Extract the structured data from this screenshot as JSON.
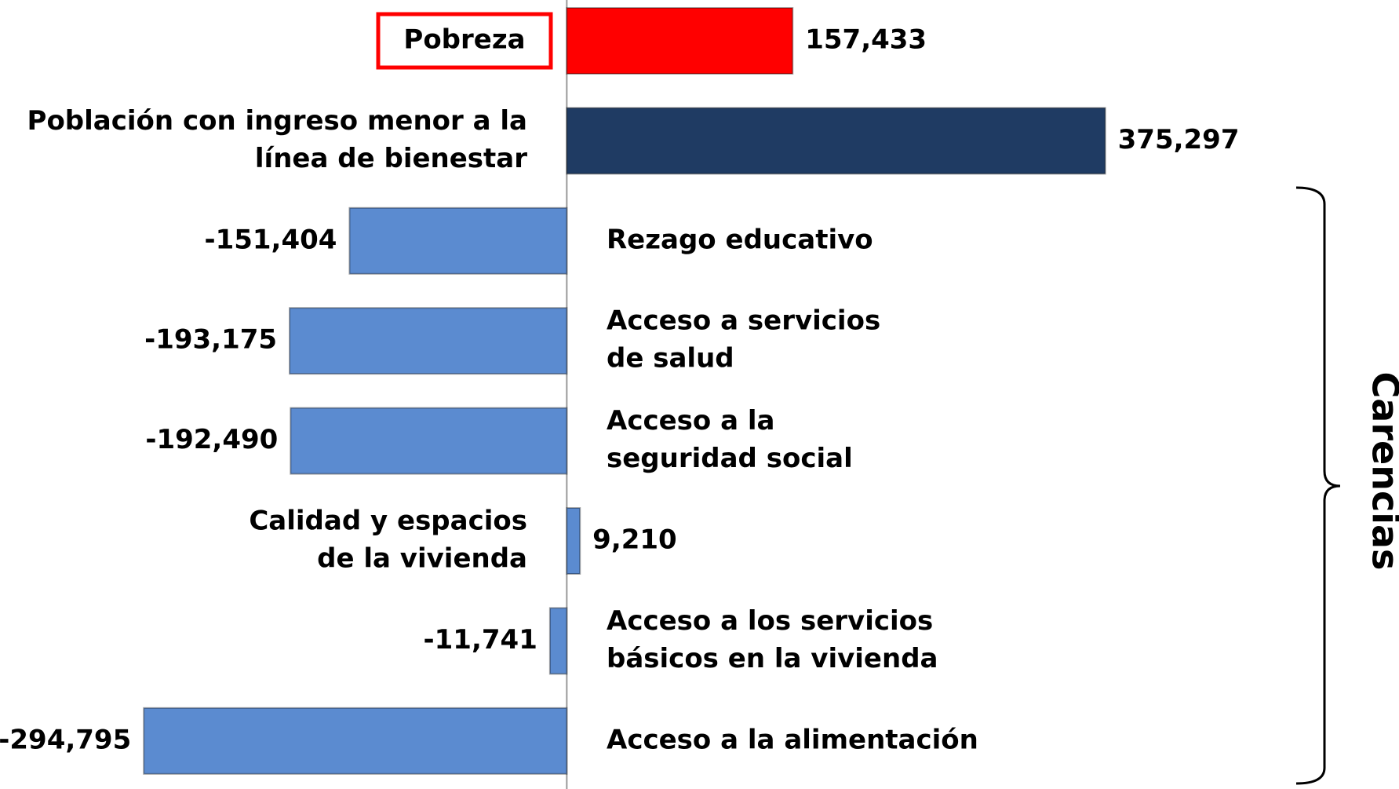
{
  "chart_data": {
    "type": "hbar",
    "categories": [
      [
        "Pobreza"
      ],
      [
        "Población con ingreso menor a la",
        "línea de bienestar"
      ],
      [
        "Rezago educativo"
      ],
      [
        "Acceso a servicios",
        "de salud"
      ],
      [
        "Acceso a  la",
        "seguridad social"
      ],
      [
        "Calidad y espacios",
        "de la vivienda"
      ],
      [
        "Acceso a los servicios",
        "básicos en la vivienda"
      ],
      [
        "Acceso a la alimentación"
      ]
    ],
    "values": [
      157433,
      375297,
      -151404,
      -193175,
      -192490,
      9210,
      -11741,
      -294795
    ],
    "value_labels": [
      "157,433",
      "375,297",
      "-151,404",
      "-193,175",
      "-192,490",
      "9,210",
      "-11,741",
      "-294,795"
    ],
    "colors": [
      "#ff0000",
      "#1f3b63",
      "#5b8bd0",
      "#5b8bd0",
      "#5b8bd0",
      "#5b8bd0",
      "#5b8bd0",
      "#5b8bd0"
    ],
    "boxed": [
      0
    ],
    "xlim": [
      -395000,
      580000
    ],
    "annotation": "Carencias"
  }
}
